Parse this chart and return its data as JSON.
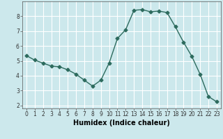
{
  "x": [
    0,
    1,
    2,
    3,
    4,
    5,
    6,
    7,
    8,
    9,
    10,
    11,
    12,
    13,
    14,
    15,
    16,
    17,
    18,
    19,
    20,
    21,
    22,
    23
  ],
  "y": [
    5.35,
    5.05,
    4.85,
    4.65,
    4.6,
    4.4,
    4.1,
    3.7,
    3.3,
    3.7,
    4.85,
    6.5,
    7.1,
    8.4,
    8.45,
    8.3,
    8.35,
    8.25,
    7.3,
    6.25,
    5.3,
    4.1,
    2.6,
    2.25
  ],
  "line_color": "#2d6b5e",
  "marker": "D",
  "marker_size": 2.5,
  "bg_color": "#cce8ec",
  "grid_color": "#ffffff",
  "xlabel": "Humidex (Indice chaleur)",
  "xlim": [
    -0.5,
    23.5
  ],
  "ylim": [
    1.8,
    9.0
  ],
  "yticks": [
    2,
    3,
    4,
    5,
    6,
    7,
    8
  ],
  "xticks": [
    0,
    1,
    2,
    3,
    4,
    5,
    6,
    7,
    8,
    9,
    10,
    11,
    12,
    13,
    14,
    15,
    16,
    17,
    18,
    19,
    20,
    21,
    22,
    23
  ],
  "tick_label_fontsize": 5.5,
  "xlabel_fontsize": 7.0,
  "line_width": 1.0
}
